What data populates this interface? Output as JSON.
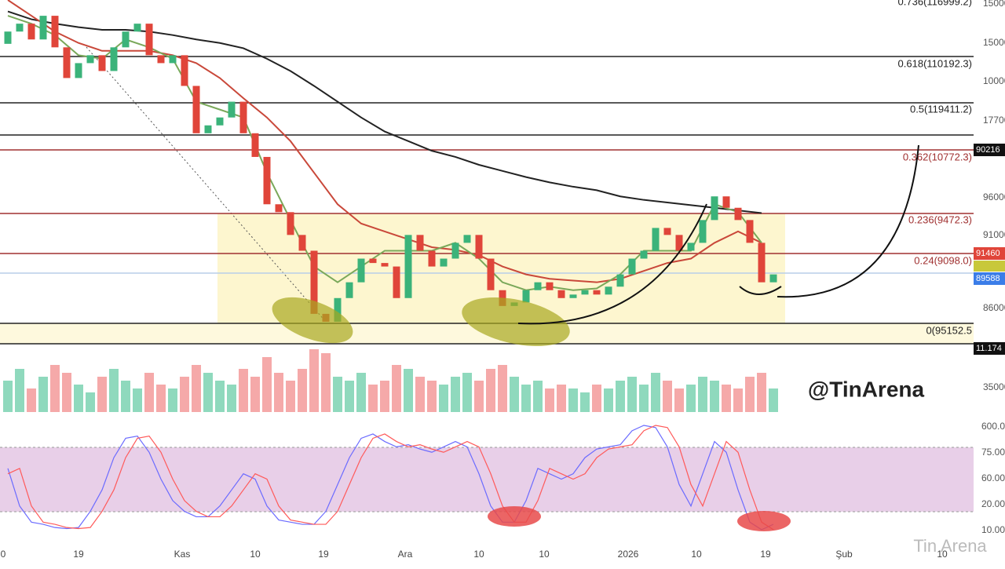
{
  "chart_data": {
    "type": "candlestick",
    "ylim": [
      80,
      127
    ],
    "open": [
      122.0,
      123.4,
      124.3,
      122.5,
      125.2,
      121.6,
      118.1,
      119.8,
      120.7,
      118.9,
      121.6,
      123.4,
      124.3,
      120.7,
      119.8,
      120.7,
      117.2,
      111.8,
      112.7,
      113.6,
      115.4,
      111.8,
      109.1,
      103.7,
      102.8,
      100.2,
      98.4,
      91.2,
      90.3,
      93.0,
      94.8,
      97.5,
      97.0,
      96.6,
      93.0,
      100.2,
      98.4,
      96.6,
      97.5,
      99.3,
      100.2,
      97.5,
      93.9,
      92.1,
      92.5,
      93.9,
      94.8,
      93.9,
      93.0,
      93.4,
      93.9,
      93.4,
      94.3,
      95.7,
      97.5,
      98.4,
      101.0,
      100.2,
      98.4,
      99.3,
      101.9,
      104.6,
      103.3,
      101.9,
      99.3,
      94.8
    ],
    "close": [
      123.4,
      124.3,
      122.5,
      125.2,
      121.6,
      118.1,
      119.8,
      120.7,
      118.9,
      121.6,
      123.4,
      124.3,
      120.7,
      119.8,
      120.7,
      117.2,
      111.8,
      112.7,
      113.6,
      115.4,
      111.8,
      109.1,
      103.7,
      102.8,
      100.2,
      98.4,
      91.2,
      90.3,
      93.0,
      94.8,
      97.5,
      97.0,
      96.6,
      93.0,
      100.2,
      98.4,
      96.6,
      97.5,
      99.3,
      100.2,
      97.5,
      93.9,
      92.1,
      92.5,
      93.9,
      94.8,
      93.9,
      93.0,
      93.4,
      93.9,
      93.4,
      94.3,
      95.7,
      97.5,
      98.4,
      101.0,
      100.2,
      98.4,
      99.3,
      101.9,
      104.6,
      103.3,
      101.9,
      99.3,
      94.8,
      95.7
    ],
    "up_color": "#3bb37a",
    "down_color": "#e0453a",
    "volume_ylim": [
      0,
      100
    ],
    "volume": [
      40,
      55,
      30,
      45,
      60,
      50,
      35,
      25,
      45,
      55,
      40,
      30,
      50,
      35,
      30,
      45,
      60,
      50,
      40,
      35,
      55,
      45,
      70,
      50,
      40,
      55,
      80,
      75,
      45,
      40,
      50,
      35,
      40,
      60,
      55,
      45,
      40,
      35,
      45,
      50,
      40,
      55,
      60,
      45,
      35,
      40,
      30,
      35,
      30,
      25,
      35,
      30,
      40,
      45,
      35,
      50,
      40,
      30,
      35,
      45,
      40,
      35,
      30,
      45,
      50,
      30
    ],
    "volume_up_color": "#8fd9bd",
    "volume_down_color": "#f5a9a9",
    "ma_x": [
      0,
      2,
      4,
      6,
      8,
      10,
      12,
      14,
      16,
      18,
      20,
      22,
      24,
      26,
      28,
      30,
      32,
      34,
      36,
      38,
      40,
      42,
      44,
      46,
      48,
      50,
      52,
      54,
      56,
      58,
      60,
      62,
      64
    ],
    "moving_averages": [
      {
        "color": "#222222",
        "values": [
          125.7,
          124.8,
          124.3,
          123.9,
          123.6,
          123.6,
          123.4,
          123.0,
          122.5,
          122.1,
          121.5,
          120.3,
          118.9,
          117.2,
          115.4,
          113.6,
          112.0,
          110.9,
          109.8,
          109.1,
          108.2,
          107.5,
          106.8,
          106.2,
          105.7,
          105.3,
          104.6,
          104.2,
          103.9,
          103.6,
          103.3,
          103.0,
          102.7
        ]
      },
      {
        "color": "#c9483a",
        "values": [
          127.0,
          125.2,
          123.4,
          122.1,
          121.2,
          121.2,
          121.2,
          120.7,
          119.8,
          118.1,
          115.8,
          113.6,
          110.9,
          107.3,
          103.7,
          101.5,
          100.6,
          99.7,
          98.8,
          98.5,
          97.9,
          96.6,
          95.7,
          95.2,
          95.0,
          94.8,
          95.2,
          96.1,
          97.0,
          97.5,
          99.3,
          100.6,
          99.3
        ]
      },
      {
        "color": "#7aa85a",
        "values": [
          125.2,
          124.3,
          123.0,
          120.7,
          120.3,
          122.5,
          121.6,
          120.3,
          115.4,
          114.5,
          113.6,
          107.3,
          101.9,
          96.6,
          94.8,
          96.6,
          98.4,
          98.4,
          98.4,
          99.3,
          97.5,
          94.8,
          93.9,
          94.3,
          93.9,
          94.1,
          95.7,
          98.4,
          98.4,
          98.4,
          103.7,
          102.8,
          99.3
        ]
      }
    ],
    "stoch_ylim": [
      0,
      100
    ],
    "stochastic": [
      {
        "color": "#6b6bff",
        "values": [
          60,
          25,
          10,
          8,
          5,
          4,
          5,
          20,
          40,
          70,
          88,
          90,
          75,
          50,
          30,
          20,
          15,
          15,
          25,
          40,
          55,
          50,
          25,
          12,
          10,
          8,
          8,
          20,
          45,
          70,
          88,
          92,
          85,
          80,
          82,
          78,
          75,
          80,
          85,
          80,
          55,
          25,
          10,
          10,
          30,
          60,
          55,
          50,
          55,
          70,
          78,
          80,
          82,
          95,
          100,
          98,
          80,
          45,
          25,
          55,
          85,
          75,
          40,
          10,
          3,
          8
        ]
      },
      {
        "color": "#ff5a5a",
        "values": [
          55,
          60,
          25,
          10,
          8,
          5,
          4,
          5,
          20,
          40,
          70,
          88,
          90,
          75,
          50,
          30,
          20,
          15,
          15,
          25,
          40,
          55,
          50,
          25,
          12,
          10,
          8,
          8,
          20,
          45,
          70,
          88,
          92,
          85,
          80,
          82,
          78,
          75,
          80,
          85,
          80,
          55,
          25,
          10,
          10,
          30,
          60,
          55,
          50,
          55,
          70,
          78,
          80,
          82,
          95,
          100,
          98,
          80,
          45,
          25,
          55,
          85,
          75,
          40,
          10,
          3
        ]
      }
    ],
    "fib_labels": [
      "0.736(116999.2)",
      "0.618(110192.3)",
      "0.5(119411.2)",
      "0.362(10772.3)",
      "0.236(9472.3)",
      "0.24(9098.0)",
      "0(95152.5"
    ],
    "price_labels": [
      "15000",
      "15000",
      "10000",
      "17700",
      "96000",
      "91000",
      "86000",
      "35000"
    ],
    "price_tags": [
      "90216",
      "91460",
      "89588",
      "11.174"
    ],
    "stoch_labels": [
      "600.0",
      "75.00",
      "60.00",
      "20.00",
      "10.00"
    ],
    "x_labels": [
      "0",
      "19",
      "Kas",
      "10",
      "19",
      "Ara",
      "10",
      "10",
      "2026",
      "10",
      "19",
      "Şub",
      "10"
    ],
    "watermark": "@TinArena",
    "brand": "Tin Arena"
  }
}
